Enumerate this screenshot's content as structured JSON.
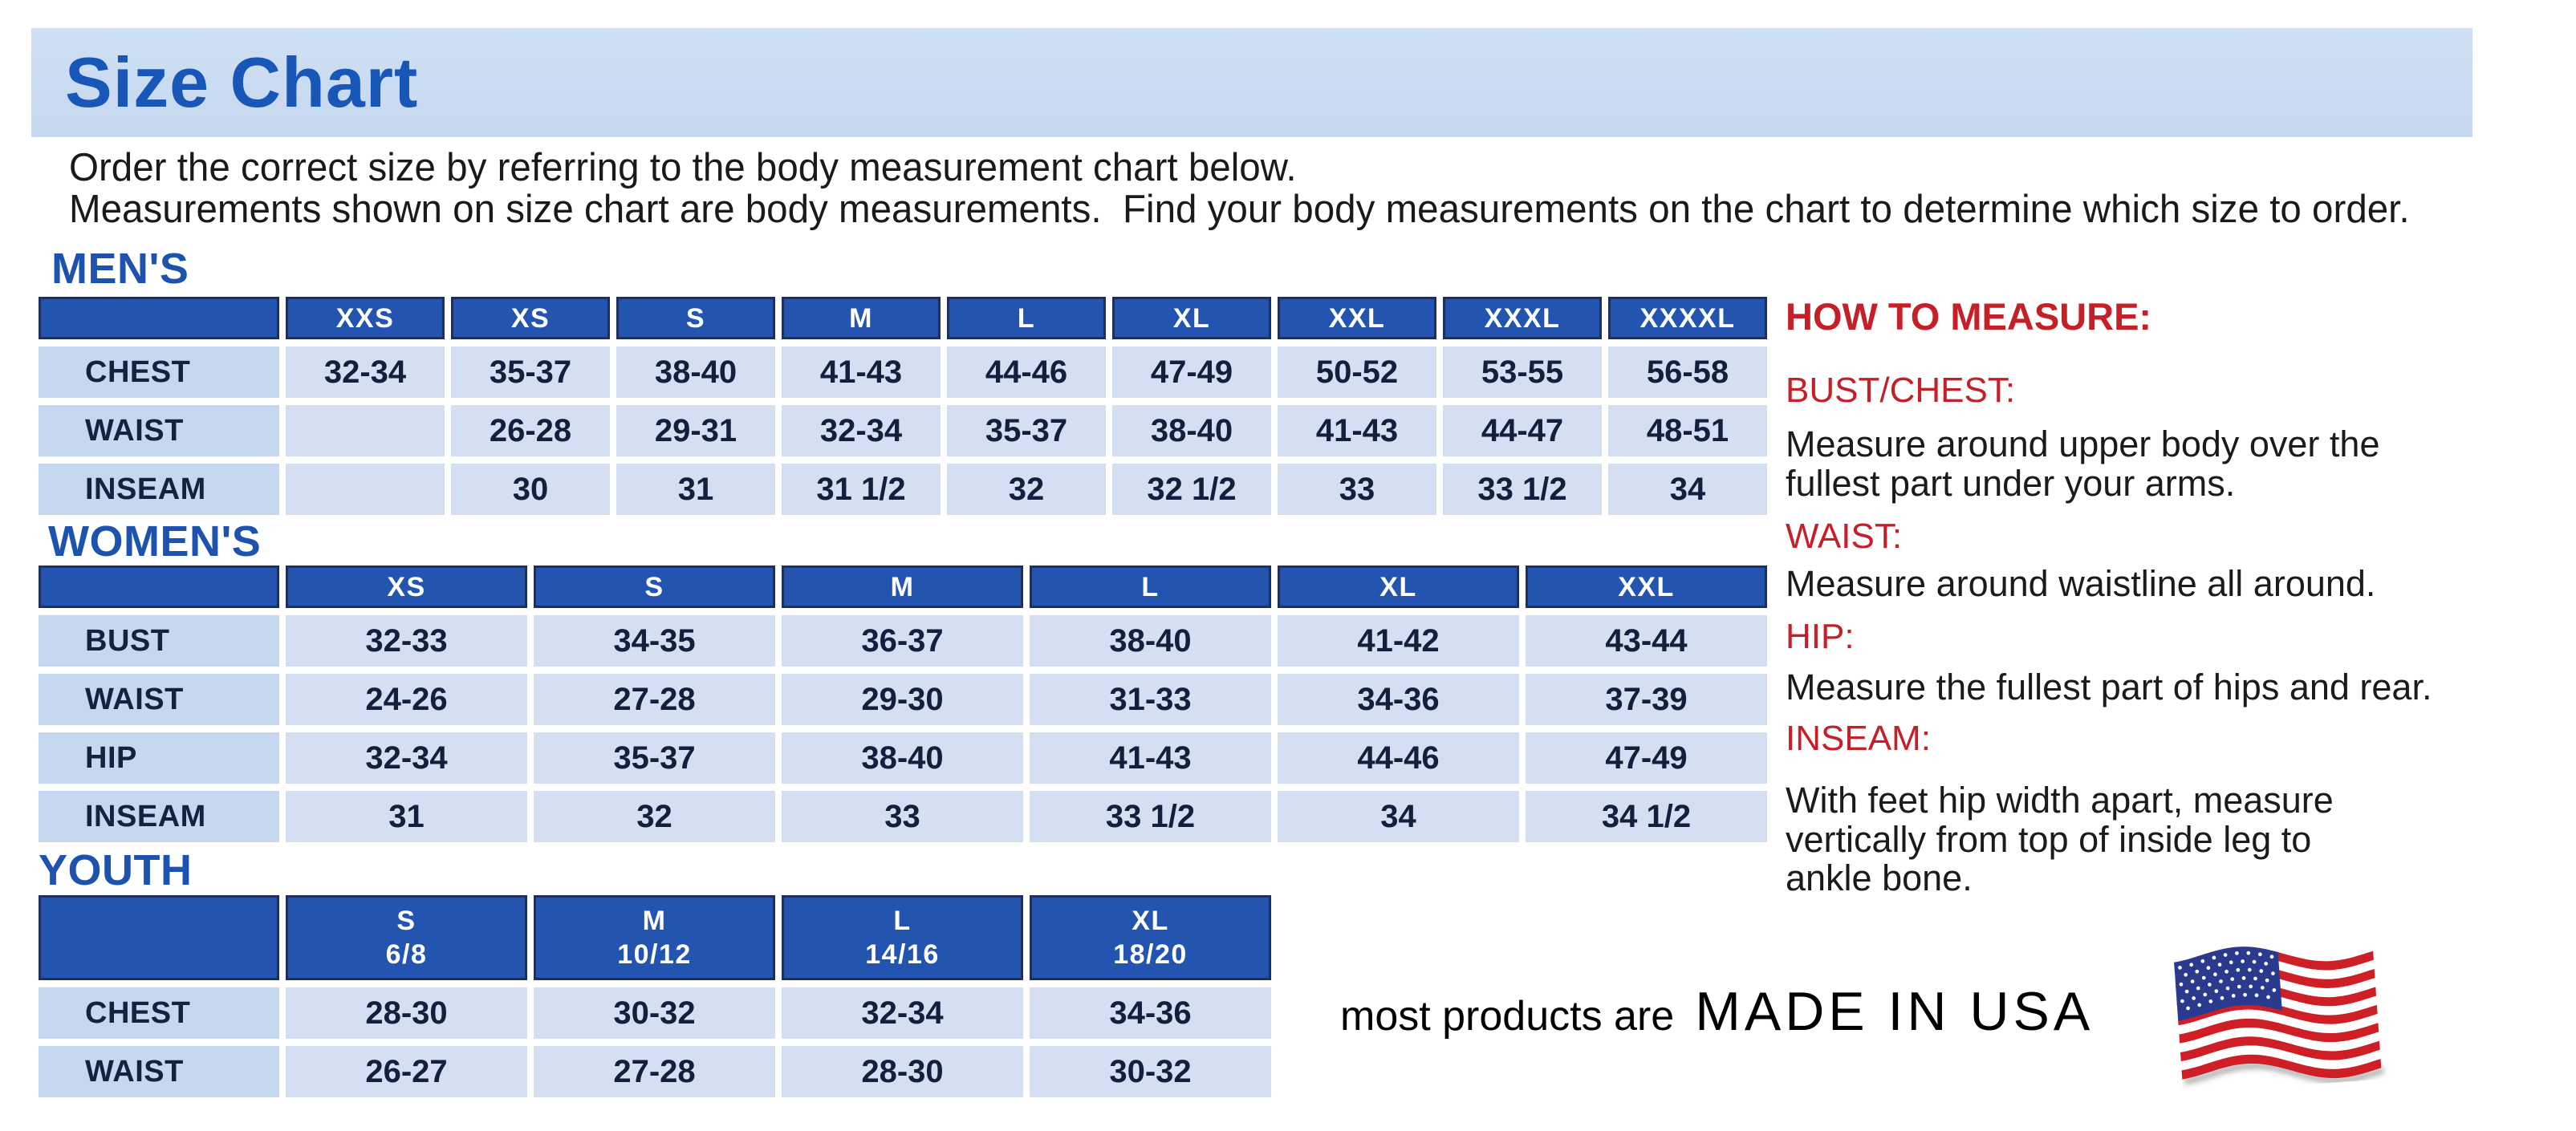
{
  "title": "Size Chart",
  "intro": {
    "line1": "Order the correct size by referring to the body measurement chart below.",
    "line2": "Measurements shown on size chart are body measurements.  Find your body measurements on the chart to determine which size to order."
  },
  "mens": {
    "heading": "MEN'S",
    "columns": [
      "XXS",
      "XS",
      "S",
      "M",
      "L",
      "XL",
      "XXL",
      "XXXL",
      "XXXXL"
    ],
    "rows": [
      {
        "label": "CHEST",
        "values": [
          "32-34",
          "35-37",
          "38-40",
          "41-43",
          "44-46",
          "47-49",
          "50-52",
          "53-55",
          "56-58"
        ]
      },
      {
        "label": "WAIST",
        "values": [
          "",
          "26-28",
          "29-31",
          "32-34",
          "35-37",
          "38-40",
          "41-43",
          "44-47",
          "48-51"
        ]
      },
      {
        "label": "INSEAM",
        "values": [
          "",
          "30",
          "31",
          "31 1/2",
          "32",
          "32 1/2",
          "33",
          "33 1/2",
          "34"
        ]
      }
    ]
  },
  "womens": {
    "heading": "WOMEN'S",
    "columns": [
      "XS",
      "S",
      "M",
      "L",
      "XL",
      "XXL"
    ],
    "rows": [
      {
        "label": "BUST",
        "values": [
          "32-33",
          "34-35",
          "36-37",
          "38-40",
          "41-42",
          "43-44"
        ]
      },
      {
        "label": "WAIST",
        "values": [
          "24-26",
          "27-28",
          "29-30",
          "31-33",
          "34-36",
          "37-39"
        ]
      },
      {
        "label": "HIP",
        "values": [
          "32-34",
          "35-37",
          "38-40",
          "41-43",
          "44-46",
          "47-49"
        ]
      },
      {
        "label": "INSEAM",
        "values": [
          "31",
          "32",
          "33",
          "33 1/2",
          "34",
          "34 1/2"
        ]
      }
    ]
  },
  "youth": {
    "heading": "YOUTH",
    "columns": [
      {
        "size": "S",
        "range": "6/8"
      },
      {
        "size": "M",
        "range": "10/12"
      },
      {
        "size": "L",
        "range": "14/16"
      },
      {
        "size": "XL",
        "range": "18/20"
      }
    ],
    "rows": [
      {
        "label": "CHEST",
        "values": [
          "28-30",
          "30-32",
          "32-34",
          "34-36"
        ]
      },
      {
        "label": "WAIST",
        "values": [
          "26-27",
          "27-28",
          "28-30",
          "30-32"
        ]
      }
    ]
  },
  "how_to_measure": {
    "heading": "HOW TO MEASURE:",
    "items": [
      {
        "label": "BUST/CHEST:",
        "lines": [
          "Measure around upper body over the",
          "fullest part under your arms."
        ]
      },
      {
        "label": "WAIST:",
        "lines": [
          "Measure around waistline all around."
        ]
      },
      {
        "label": "HIP:",
        "lines": [
          "Measure the fullest part of hips and rear."
        ]
      },
      {
        "label": "INSEAM:",
        "lines": [
          "With feet hip width apart, measure",
          "vertically from top of inside leg to",
          "ankle bone."
        ]
      }
    ]
  },
  "footer": {
    "prefix": "most products are",
    "emphasis": "MADE IN USA",
    "flag_icon": "usa-flag"
  },
  "colors": {
    "accent_blue": "#1d53ae",
    "header_blue": "#2355b0",
    "label_cell_blue": "#c6d8ef",
    "value_cell_blue": "#d4e0f2",
    "banner_blue": "#cbdcf1",
    "red": "#c51f28"
  }
}
